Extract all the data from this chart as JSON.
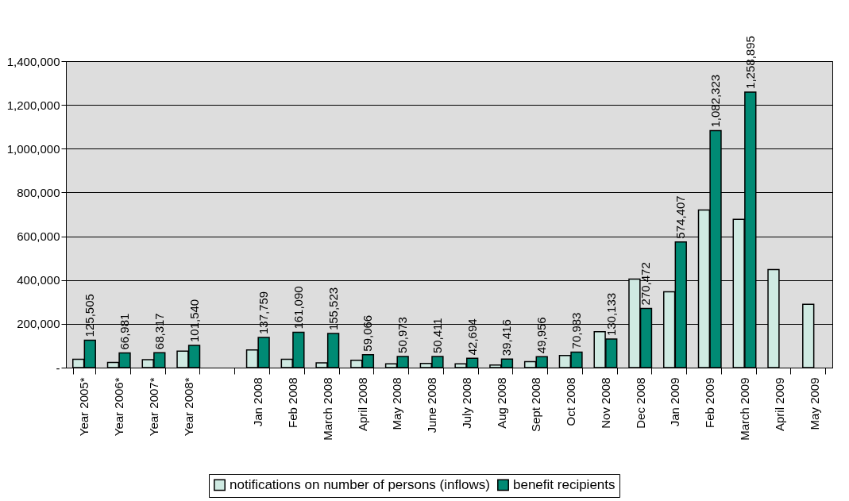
{
  "chart_data": {
    "type": "bar",
    "categories": [
      "Year 2005*",
      "Year 2006*",
      "Year 2007*",
      "Year 2008*",
      null,
      "Jan 2008",
      "Feb 2008",
      "March 2008",
      "April 2008",
      "May 2008",
      "June 2008",
      "July 2008",
      "Aug 2008",
      "Sept 2008",
      "Oct 2008",
      "Nov 2008",
      "Dec 2008",
      "Jan 2009",
      "Feb 2009",
      "March 2009",
      "April 2009",
      "May 2009"
    ],
    "series": [
      {
        "name": "notifications on number of persons (inflows)",
        "color": "#cfeae2",
        "values": [
          38000,
          24000,
          36000,
          75000,
          null,
          81000,
          38000,
          22000,
          34000,
          17000,
          19000,
          17000,
          12000,
          27000,
          55000,
          164000,
          404000,
          346000,
          720000,
          677000,
          448000,
          289000
        ]
      },
      {
        "name": "benefit recipients",
        "color": "#008a74",
        "values": [
          125505,
          66981,
          68317,
          101540,
          null,
          137759,
          161090,
          155523,
          59066,
          50973,
          50411,
          42694,
          39416,
          49956,
          70983,
          130133,
          270472,
          574407,
          1082323,
          1258895,
          null,
          null
        ],
        "value_labels": [
          "125,505",
          "66,981",
          "68,317",
          "101,540",
          null,
          "137,759",
          "161,090",
          "155,523",
          "59,066",
          "50,973",
          "50,411",
          "42,694",
          "39,416",
          "49,956",
          "70,983",
          "130,133",
          "270,472",
          "574,407",
          "1,082,323",
          "1,258,895",
          null,
          null
        ]
      }
    ],
    "ylim": [
      0,
      1400000
    ],
    "yticks": [
      {
        "value": 0,
        "label": "-"
      },
      {
        "value": 200000,
        "label": "200,000"
      },
      {
        "value": 400000,
        "label": "400,000"
      },
      {
        "value": 600000,
        "label": "600,000"
      },
      {
        "value": 800000,
        "label": "800,000"
      },
      {
        "value": 1000000,
        "label": "1,000,000"
      },
      {
        "value": 1200000,
        "label": "1,200,000"
      },
      {
        "value": 1400000,
        "label": "1,400,000"
      }
    ],
    "grid": "y",
    "legend": "bottom"
  }
}
